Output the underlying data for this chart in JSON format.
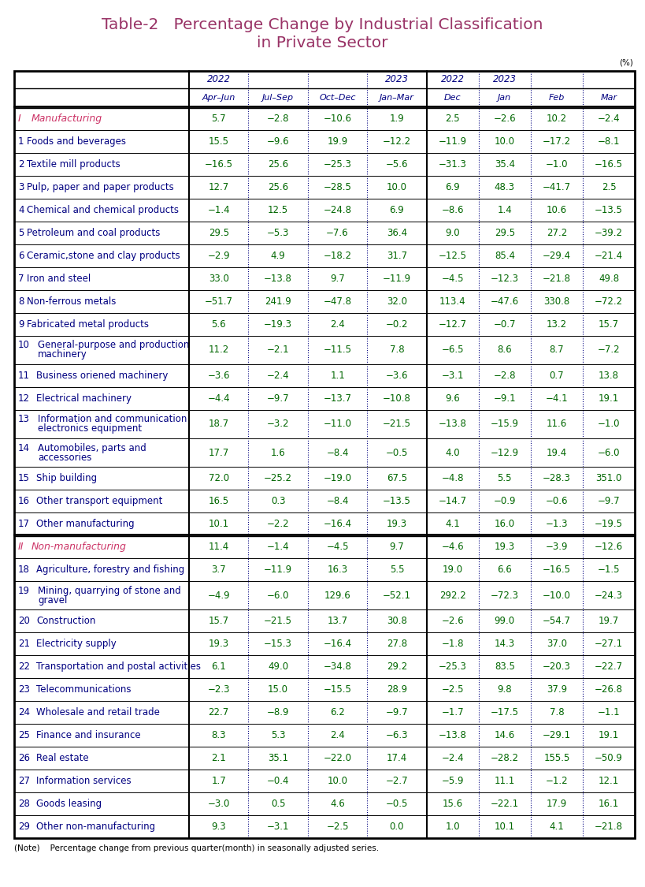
{
  "title_line1": "Table-2   Percentage Change by Industrial Classification",
  "title_line2": "in Private Sector",
  "title_color": "#993366",
  "note": "(Note)    Percentage change from previous quarter(month) in seasonally adjusted series.",
  "percent_label": "(%)",
  "col_headers_bot": [
    "Apr–Jun",
    "Jul–Sep",
    "Oct–Dec",
    "Jan–Mar",
    "Dec",
    "Jan",
    "Feb",
    "Mar"
  ],
  "col_header_color": "#000080",
  "rows": [
    {
      "num": "I",
      "label": "Manufacturing",
      "values": [
        5.7,
        -2.8,
        -10.6,
        1.9,
        2.5,
        -2.6,
        10.2,
        -2.4
      ],
      "is_header": true,
      "two_line": false
    },
    {
      "num": "1",
      "label": "Foods and beverages",
      "values": [
        15.5,
        -9.6,
        19.9,
        -12.2,
        -11.9,
        10.0,
        -17.2,
        -8.1
      ],
      "is_header": false,
      "two_line": false
    },
    {
      "num": "2",
      "label": "Textile mill products",
      "values": [
        -16.5,
        25.6,
        -25.3,
        -5.6,
        -31.3,
        35.4,
        -1.0,
        -16.5
      ],
      "is_header": false,
      "two_line": false
    },
    {
      "num": "3",
      "label": "Pulp, paper and paper products",
      "values": [
        12.7,
        25.6,
        -28.5,
        10.0,
        6.9,
        48.3,
        -41.7,
        2.5
      ],
      "is_header": false,
      "two_line": false
    },
    {
      "num": "4",
      "label": "Chemical and chemical products",
      "values": [
        -1.4,
        12.5,
        -24.8,
        6.9,
        -8.6,
        1.4,
        10.6,
        -13.5
      ],
      "is_header": false,
      "two_line": false
    },
    {
      "num": "5",
      "label": "Petroleum and coal products",
      "values": [
        29.5,
        -5.3,
        -7.6,
        36.4,
        9.0,
        29.5,
        27.2,
        -39.2
      ],
      "is_header": false,
      "two_line": false
    },
    {
      "num": "6",
      "label": "Ceramic,stone and clay products",
      "values": [
        -2.9,
        4.9,
        -18.2,
        31.7,
        -12.5,
        85.4,
        -29.4,
        -21.4
      ],
      "is_header": false,
      "two_line": false
    },
    {
      "num": "7",
      "label": "Iron and steel",
      "values": [
        33.0,
        -13.8,
        9.7,
        -11.9,
        -4.5,
        -12.3,
        -21.8,
        49.8
      ],
      "is_header": false,
      "two_line": false
    },
    {
      "num": "8",
      "label": "Non-ferrous metals",
      "values": [
        -51.7,
        241.9,
        -47.8,
        32.0,
        113.4,
        -47.6,
        330.8,
        -72.2
      ],
      "is_header": false,
      "two_line": false
    },
    {
      "num": "9",
      "label": "Fabricated metal products",
      "values": [
        5.6,
        -19.3,
        2.4,
        -0.2,
        -12.7,
        -0.7,
        13.2,
        15.7
      ],
      "is_header": false,
      "two_line": false
    },
    {
      "num": "10",
      "label": "General-purpose and production machinery",
      "values": [
        11.2,
        -2.1,
        -11.5,
        7.8,
        -6.5,
        8.6,
        8.7,
        -7.2
      ],
      "is_header": false,
      "two_line": true,
      "label2": "machinery",
      "label1": "General-purpose and production"
    },
    {
      "num": "11",
      "label": "Business oriened machinery",
      "values": [
        -3.6,
        -2.4,
        1.1,
        -3.6,
        -3.1,
        -2.8,
        0.7,
        13.8
      ],
      "is_header": false,
      "two_line": false
    },
    {
      "num": "12",
      "label": "Electrical machinery",
      "values": [
        -4.4,
        -9.7,
        -13.7,
        -10.8,
        9.6,
        -9.1,
        -4.1,
        19.1
      ],
      "is_header": false,
      "two_line": false
    },
    {
      "num": "13",
      "label": "Information and communication electronics equipment",
      "values": [
        18.7,
        -3.2,
        -11.0,
        -21.5,
        -13.8,
        -15.9,
        11.6,
        -1.0
      ],
      "is_header": false,
      "two_line": true,
      "label1": "Information and communication",
      "label2": "electronics equipment"
    },
    {
      "num": "14",
      "label": "Automobiles, parts and accessories",
      "values": [
        17.7,
        1.6,
        -8.4,
        -0.5,
        4.0,
        -12.9,
        19.4,
        -6.0
      ],
      "is_header": false,
      "two_line": true,
      "label1": "Automobiles, parts and",
      "label2": "accessories"
    },
    {
      "num": "15",
      "label": "Ship building",
      "values": [
        72.0,
        -25.2,
        -19.0,
        67.5,
        -4.8,
        5.5,
        -28.3,
        351.0
      ],
      "is_header": false,
      "two_line": false
    },
    {
      "num": "16",
      "label": "Other transport equipment",
      "values": [
        16.5,
        0.3,
        -8.4,
        -13.5,
        -14.7,
        -0.9,
        -0.6,
        -9.7
      ],
      "is_header": false,
      "two_line": false
    },
    {
      "num": "17",
      "label": "Other manufacturing",
      "values": [
        10.1,
        -2.2,
        -16.4,
        19.3,
        4.1,
        16.0,
        -1.3,
        -19.5
      ],
      "is_header": false,
      "two_line": false
    },
    {
      "num": "II",
      "label": "Non-manufacturing",
      "values": [
        11.4,
        -1.4,
        -4.5,
        9.7,
        -4.6,
        19.3,
        -3.9,
        -12.6
      ],
      "is_header": true,
      "two_line": false
    },
    {
      "num": "18",
      "label": "Agriculture, forestry and fishing",
      "values": [
        3.7,
        -11.9,
        16.3,
        5.5,
        19.0,
        6.6,
        -16.5,
        -1.5
      ],
      "is_header": false,
      "two_line": false
    },
    {
      "num": "19",
      "label": "Mining, quarrying of stone and gravel",
      "values": [
        -4.9,
        -6.0,
        129.6,
        -52.1,
        292.2,
        -72.3,
        -10.0,
        -24.3
      ],
      "is_header": false,
      "two_line": true,
      "label1": "Mining, quarrying of stone and",
      "label2": "gravel"
    },
    {
      "num": "20",
      "label": "Construction",
      "values": [
        15.7,
        -21.5,
        13.7,
        30.8,
        -2.6,
        99.0,
        -54.7,
        19.7
      ],
      "is_header": false,
      "two_line": false
    },
    {
      "num": "21",
      "label": "Electricity supply",
      "values": [
        19.3,
        -15.3,
        -16.4,
        27.8,
        -1.8,
        14.3,
        37.0,
        -27.1
      ],
      "is_header": false,
      "two_line": false
    },
    {
      "num": "22",
      "label": "Transportation and postal activities",
      "values": [
        6.1,
        49.0,
        -34.8,
        29.2,
        -25.3,
        83.5,
        -20.3,
        -22.7
      ],
      "is_header": false,
      "two_line": false
    },
    {
      "num": "23",
      "label": "Telecommunications",
      "values": [
        -2.3,
        15.0,
        -15.5,
        28.9,
        -2.5,
        9.8,
        37.9,
        -26.8
      ],
      "is_header": false,
      "two_line": false
    },
    {
      "num": "24",
      "label": "Wholesale and retail trade",
      "values": [
        22.7,
        -8.9,
        6.2,
        -9.7,
        -1.7,
        -17.5,
        7.8,
        -1.1
      ],
      "is_header": false,
      "two_line": false
    },
    {
      "num": "25",
      "label": "Finance and insurance",
      "values": [
        8.3,
        5.3,
        2.4,
        -6.3,
        -13.8,
        14.6,
        -29.1,
        19.1
      ],
      "is_header": false,
      "two_line": false
    },
    {
      "num": "26",
      "label": "Real estate",
      "values": [
        2.1,
        35.1,
        -22.0,
        17.4,
        -2.4,
        -28.2,
        155.5,
        -50.9
      ],
      "is_header": false,
      "two_line": false
    },
    {
      "num": "27",
      "label": "Information services",
      "values": [
        1.7,
        -0.4,
        10.0,
        -2.7,
        -5.9,
        11.1,
        -1.2,
        12.1
      ],
      "is_header": false,
      "two_line": false
    },
    {
      "num": "28",
      "label": "Goods leasing",
      "values": [
        -3.0,
        0.5,
        4.6,
        -0.5,
        15.6,
        -22.1,
        17.9,
        16.1
      ],
      "is_header": false,
      "two_line": false
    },
    {
      "num": "29",
      "label": "Other non-manufacturing",
      "values": [
        9.3,
        -3.1,
        -2.5,
        0.0,
        1.0,
        10.1,
        4.1,
        -21.8
      ],
      "is_header": false,
      "two_line": false
    }
  ],
  "header_row_color": "#cc3366",
  "val_color": "#006600",
  "num_color": "#000080",
  "label_normal_color": "#000080",
  "bg_color": "#ffffff"
}
